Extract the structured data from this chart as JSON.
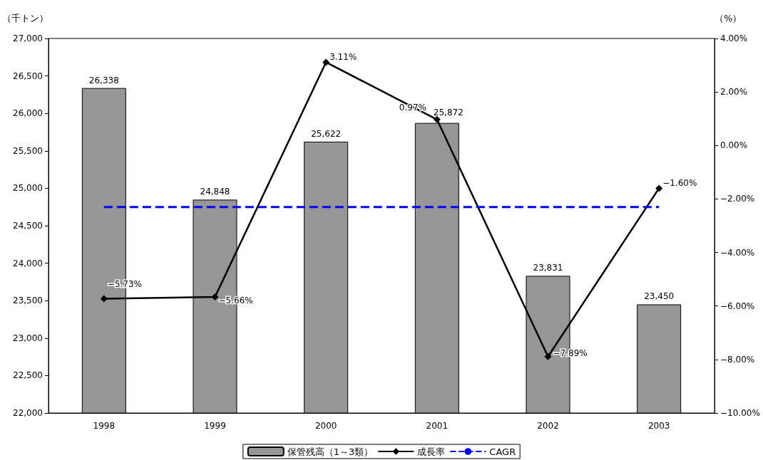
{
  "chart_data": {
    "type": "bar",
    "ylabel": "（千トン）",
    "y2label": "（%）",
    "categories": [
      "1998",
      "1999",
      "2000",
      "2001",
      "2002",
      "2003"
    ],
    "series": [
      {
        "name": "保管残高（1～3類）",
        "type": "bar",
        "color": "#969696",
        "values": [
          26338,
          24848,
          25622,
          25872,
          23831,
          23450
        ],
        "value_labels": [
          "26,338",
          "24,848",
          "25,622",
          "25,872",
          "23,831",
          "23,450"
        ]
      },
      {
        "name": "成長率",
        "type": "line",
        "axis": "y2",
        "color": "#000000",
        "marker": "diamond",
        "line_style": "solid",
        "values": [
          -5.73,
          -5.66,
          3.11,
          0.97,
          -7.89,
          -1.6
        ],
        "value_labels": [
          "−5.73%",
          "−5.66%",
          "3.11%",
          "0.97%",
          "−7.89%",
          "−1.60%"
        ]
      },
      {
        "name": "CAGR",
        "type": "line",
        "axis": "y2",
        "color": "#0000ff",
        "marker": "none",
        "line_style": "dashed",
        "values": [
          -2.3,
          -2.3,
          -2.3,
          -2.3,
          -2.3,
          -2.3
        ]
      }
    ],
    "ylim": [
      22000,
      27000
    ],
    "yticks": [
      {
        "value": 22000,
        "label": "22,000"
      },
      {
        "value": 22500,
        "label": "22,500"
      },
      {
        "value": 23000,
        "label": "23,000"
      },
      {
        "value": 23500,
        "label": "23,500"
      },
      {
        "value": 24000,
        "label": "24,000"
      },
      {
        "value": 24500,
        "label": "24,500"
      },
      {
        "value": 25000,
        "label": "25,000"
      },
      {
        "value": 25500,
        "label": "25,500"
      },
      {
        "value": 26000,
        "label": "26,000"
      },
      {
        "value": 26500,
        "label": "26,500"
      },
      {
        "value": 27000,
        "label": "27,000"
      }
    ],
    "y2lim": [
      -10,
      4
    ],
    "y2ticks": [
      {
        "value": -10,
        "label": "−10.00%"
      },
      {
        "value": -8,
        "label": "−8.00%"
      },
      {
        "value": -6,
        "label": "−6.00%"
      },
      {
        "value": -4,
        "label": "−4.00%"
      },
      {
        "value": -2,
        "label": "−2.00%"
      },
      {
        "value": 0,
        "label": "0.00%"
      },
      {
        "value": 2,
        "label": "2.00%"
      },
      {
        "value": 4,
        "label": "4.00%"
      }
    ],
    "grid": false,
    "legend": "bottom"
  }
}
